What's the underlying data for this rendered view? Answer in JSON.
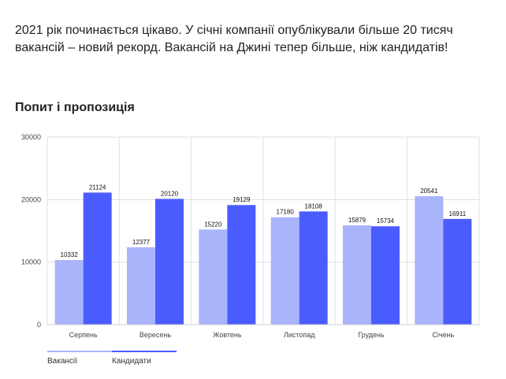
{
  "article": {
    "intro": "2021 рік починається цікаво. У січні компанії опублікували більше 20 тисяч вакансій – новий рекорд. Вакансій на Джині тепер більше, ніж кандидатів!"
  },
  "chart_data": {
    "type": "bar",
    "title": "Попит і пропозиція",
    "xlabel": "",
    "ylabel": "",
    "categories": [
      "Серпень",
      "Вересень",
      "Жовтень",
      "Листопад",
      "Грудень",
      "Січень"
    ],
    "series": [
      {
        "name": "Вакансії",
        "color": "#aab4fb",
        "values": [
          10332,
          12377,
          15220,
          17180,
          15879,
          20541
        ],
        "labels": [
          "10332",
          "12377",
          "15220",
          "17180",
          "15879",
          "20541"
        ]
      },
      {
        "name": "Кандидати",
        "color": "#4b5cff",
        "values": [
          21124,
          20120,
          19129,
          18108,
          15734,
          16911
        ],
        "labels": [
          "21124",
          "20120",
          "19129",
          "18108",
          "15734",
          "16911"
        ]
      }
    ],
    "ylim": [
      0,
      30000
    ],
    "yticks": [
      0,
      10000,
      20000,
      30000
    ],
    "ytick_labels": [
      "0",
      "10000",
      "20000",
      "30000"
    ],
    "grid": true,
    "legend": "bottom-left"
  }
}
